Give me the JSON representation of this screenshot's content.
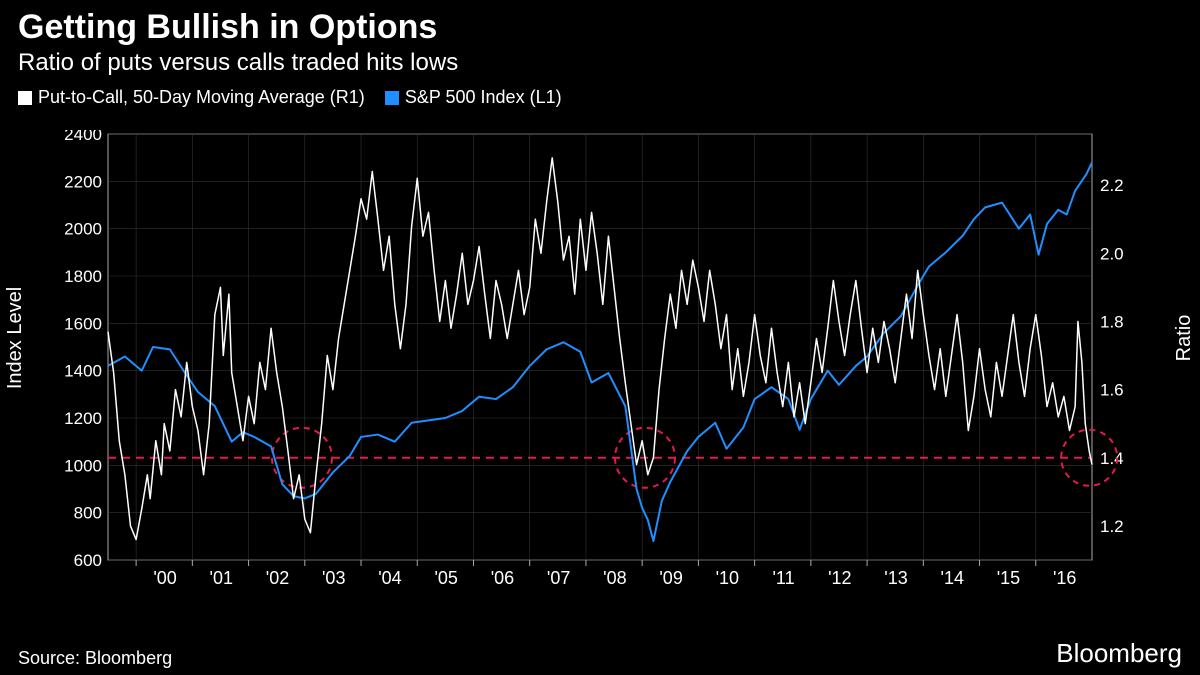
{
  "title": "Getting Bullish in Options",
  "subtitle": "Ratio of puts versus calls traded hits lows",
  "legend": [
    {
      "label": "Put-to-Call, 50-Day Moving Average (R1)",
      "color": "#ffffff"
    },
    {
      "label": "S&P 500 Index (L1)",
      "color": "#1f8fff"
    }
  ],
  "y_left": {
    "label": "Index Level",
    "min": 600,
    "max": 2400,
    "ticks": [
      600,
      800,
      1000,
      1200,
      1400,
      1600,
      1800,
      2000,
      2200,
      2400
    ]
  },
  "y_right": {
    "label": "Ratio",
    "min": 1.1,
    "max": 2.35,
    "ticks": [
      1.2,
      1.4,
      1.6,
      1.8,
      2.0,
      2.2
    ]
  },
  "x_axis": {
    "min": 1999.5,
    "max": 2017.0,
    "ticks": [
      "'00",
      "'01",
      "'02",
      "'03",
      "'04",
      "'05",
      "'06",
      "'07",
      "'08",
      "'09",
      "'10",
      "'11",
      "'12",
      "'13",
      "'14",
      "'15",
      "'16"
    ],
    "tick_positions": [
      2000,
      2001,
      2002,
      2003,
      2004,
      2005,
      2006,
      2007,
      2008,
      2009,
      2010,
      2011,
      2012,
      2013,
      2014,
      2015,
      2016
    ]
  },
  "series_sp500": {
    "color": "#1f8fff",
    "line_width": 2,
    "points": [
      [
        1999.5,
        1420
      ],
      [
        1999.8,
        1460
      ],
      [
        2000.1,
        1400
      ],
      [
        2000.3,
        1500
      ],
      [
        2000.6,
        1490
      ],
      [
        2000.9,
        1380
      ],
      [
        2001.1,
        1310
      ],
      [
        2001.4,
        1250
      ],
      [
        2001.7,
        1100
      ],
      [
        2001.9,
        1140
      ],
      [
        2002.1,
        1120
      ],
      [
        2002.4,
        1080
      ],
      [
        2002.6,
        920
      ],
      [
        2002.8,
        870
      ],
      [
        2003.0,
        860
      ],
      [
        2003.2,
        880
      ],
      [
        2003.5,
        970
      ],
      [
        2003.8,
        1040
      ],
      [
        2004.0,
        1120
      ],
      [
        2004.3,
        1130
      ],
      [
        2004.6,
        1100
      ],
      [
        2004.9,
        1180
      ],
      [
        2005.2,
        1190
      ],
      [
        2005.5,
        1200
      ],
      [
        2005.8,
        1230
      ],
      [
        2006.1,
        1290
      ],
      [
        2006.4,
        1280
      ],
      [
        2006.7,
        1330
      ],
      [
        2007.0,
        1420
      ],
      [
        2007.3,
        1490
      ],
      [
        2007.6,
        1520
      ],
      [
        2007.9,
        1480
      ],
      [
        2008.1,
        1350
      ],
      [
        2008.4,
        1390
      ],
      [
        2008.7,
        1250
      ],
      [
        2008.9,
        900
      ],
      [
        2009.0,
        820
      ],
      [
        2009.1,
        770
      ],
      [
        2009.2,
        680
      ],
      [
        2009.35,
        850
      ],
      [
        2009.5,
        930
      ],
      [
        2009.8,
        1060
      ],
      [
        2010.0,
        1120
      ],
      [
        2010.3,
        1180
      ],
      [
        2010.5,
        1070
      ],
      [
        2010.8,
        1160
      ],
      [
        2011.0,
        1280
      ],
      [
        2011.3,
        1330
      ],
      [
        2011.6,
        1280
      ],
      [
        2011.8,
        1150
      ],
      [
        2012.0,
        1280
      ],
      [
        2012.3,
        1400
      ],
      [
        2012.5,
        1340
      ],
      [
        2012.8,
        1420
      ],
      [
        2013.0,
        1460
      ],
      [
        2013.3,
        1560
      ],
      [
        2013.6,
        1630
      ],
      [
        2013.9,
        1760
      ],
      [
        2014.1,
        1840
      ],
      [
        2014.4,
        1900
      ],
      [
        2014.7,
        1970
      ],
      [
        2014.9,
        2040
      ],
      [
        2015.1,
        2090
      ],
      [
        2015.4,
        2110
      ],
      [
        2015.7,
        2000
      ],
      [
        2015.9,
        2060
      ],
      [
        2016.05,
        1890
      ],
      [
        2016.2,
        2020
      ],
      [
        2016.4,
        2080
      ],
      [
        2016.55,
        2060
      ],
      [
        2016.7,
        2160
      ],
      [
        2016.9,
        2230
      ],
      [
        2017.0,
        2280
      ]
    ]
  },
  "series_putcall": {
    "color": "#ffffff",
    "line_width": 1.5,
    "points": [
      [
        1999.5,
        1.77
      ],
      [
        1999.6,
        1.65
      ],
      [
        1999.7,
        1.45
      ],
      [
        1999.8,
        1.35
      ],
      [
        1999.9,
        1.2
      ],
      [
        2000.0,
        1.16
      ],
      [
        2000.1,
        1.25
      ],
      [
        2000.2,
        1.35
      ],
      [
        2000.25,
        1.28
      ],
      [
        2000.35,
        1.45
      ],
      [
        2000.45,
        1.35
      ],
      [
        2000.5,
        1.5
      ],
      [
        2000.6,
        1.42
      ],
      [
        2000.7,
        1.6
      ],
      [
        2000.8,
        1.52
      ],
      [
        2000.9,
        1.68
      ],
      [
        2001.0,
        1.55
      ],
      [
        2001.1,
        1.48
      ],
      [
        2001.2,
        1.35
      ],
      [
        2001.3,
        1.5
      ],
      [
        2001.4,
        1.82
      ],
      [
        2001.5,
        1.9
      ],
      [
        2001.55,
        1.7
      ],
      [
        2001.65,
        1.88
      ],
      [
        2001.7,
        1.65
      ],
      [
        2001.8,
        1.55
      ],
      [
        2001.9,
        1.45
      ],
      [
        2002.0,
        1.58
      ],
      [
        2002.1,
        1.5
      ],
      [
        2002.2,
        1.68
      ],
      [
        2002.3,
        1.6
      ],
      [
        2002.4,
        1.78
      ],
      [
        2002.5,
        1.65
      ],
      [
        2002.6,
        1.55
      ],
      [
        2002.7,
        1.42
      ],
      [
        2002.8,
        1.28
      ],
      [
        2002.9,
        1.35
      ],
      [
        2003.0,
        1.22
      ],
      [
        2003.1,
        1.18
      ],
      [
        2003.2,
        1.35
      ],
      [
        2003.3,
        1.5
      ],
      [
        2003.4,
        1.7
      ],
      [
        2003.5,
        1.6
      ],
      [
        2003.6,
        1.75
      ],
      [
        2003.7,
        1.85
      ],
      [
        2003.8,
        1.95
      ],
      [
        2003.9,
        2.05
      ],
      [
        2004.0,
        2.16
      ],
      [
        2004.1,
        2.1
      ],
      [
        2004.2,
        2.24
      ],
      [
        2004.3,
        2.1
      ],
      [
        2004.4,
        1.95
      ],
      [
        2004.5,
        2.05
      ],
      [
        2004.6,
        1.85
      ],
      [
        2004.7,
        1.72
      ],
      [
        2004.8,
        1.85
      ],
      [
        2004.9,
        2.08
      ],
      [
        2005.0,
        2.22
      ],
      [
        2005.1,
        2.05
      ],
      [
        2005.2,
        2.12
      ],
      [
        2005.3,
        1.95
      ],
      [
        2005.4,
        1.8
      ],
      [
        2005.5,
        1.92
      ],
      [
        2005.6,
        1.78
      ],
      [
        2005.7,
        1.88
      ],
      [
        2005.8,
        2.0
      ],
      [
        2005.9,
        1.85
      ],
      [
        2006.0,
        1.92
      ],
      [
        2006.1,
        2.02
      ],
      [
        2006.2,
        1.88
      ],
      [
        2006.3,
        1.75
      ],
      [
        2006.4,
        1.92
      ],
      [
        2006.5,
        1.85
      ],
      [
        2006.6,
        1.75
      ],
      [
        2006.7,
        1.85
      ],
      [
        2006.8,
        1.95
      ],
      [
        2006.9,
        1.82
      ],
      [
        2007.0,
        1.9
      ],
      [
        2007.1,
        2.1
      ],
      [
        2007.2,
        2.0
      ],
      [
        2007.3,
        2.15
      ],
      [
        2007.4,
        2.28
      ],
      [
        2007.5,
        2.15
      ],
      [
        2007.6,
        1.98
      ],
      [
        2007.7,
        2.05
      ],
      [
        2007.8,
        1.88
      ],
      [
        2007.9,
        2.1
      ],
      [
        2008.0,
        1.95
      ],
      [
        2008.1,
        2.12
      ],
      [
        2008.2,
        2.0
      ],
      [
        2008.3,
        1.85
      ],
      [
        2008.4,
        2.05
      ],
      [
        2008.5,
        1.9
      ],
      [
        2008.6,
        1.75
      ],
      [
        2008.7,
        1.62
      ],
      [
        2008.8,
        1.5
      ],
      [
        2008.9,
        1.38
      ],
      [
        2009.0,
        1.45
      ],
      [
        2009.1,
        1.35
      ],
      [
        2009.2,
        1.4
      ],
      [
        2009.3,
        1.6
      ],
      [
        2009.4,
        1.75
      ],
      [
        2009.5,
        1.88
      ],
      [
        2009.6,
        1.78
      ],
      [
        2009.7,
        1.95
      ],
      [
        2009.8,
        1.85
      ],
      [
        2009.9,
        1.98
      ],
      [
        2010.0,
        1.9
      ],
      [
        2010.1,
        1.8
      ],
      [
        2010.2,
        1.95
      ],
      [
        2010.3,
        1.85
      ],
      [
        2010.4,
        1.72
      ],
      [
        2010.5,
        1.82
      ],
      [
        2010.6,
        1.6
      ],
      [
        2010.7,
        1.72
      ],
      [
        2010.8,
        1.58
      ],
      [
        2010.9,
        1.68
      ],
      [
        2011.0,
        1.82
      ],
      [
        2011.1,
        1.7
      ],
      [
        2011.2,
        1.62
      ],
      [
        2011.3,
        1.78
      ],
      [
        2011.4,
        1.65
      ],
      [
        2011.5,
        1.55
      ],
      [
        2011.6,
        1.68
      ],
      [
        2011.7,
        1.52
      ],
      [
        2011.8,
        1.62
      ],
      [
        2011.9,
        1.5
      ],
      [
        2012.0,
        1.62
      ],
      [
        2012.1,
        1.75
      ],
      [
        2012.2,
        1.65
      ],
      [
        2012.3,
        1.78
      ],
      [
        2012.4,
        1.92
      ],
      [
        2012.5,
        1.8
      ],
      [
        2012.6,
        1.7
      ],
      [
        2012.7,
        1.82
      ],
      [
        2012.8,
        1.92
      ],
      [
        2012.9,
        1.78
      ],
      [
        2013.0,
        1.65
      ],
      [
        2013.1,
        1.78
      ],
      [
        2013.2,
        1.68
      ],
      [
        2013.3,
        1.8
      ],
      [
        2013.4,
        1.72
      ],
      [
        2013.5,
        1.62
      ],
      [
        2013.6,
        1.75
      ],
      [
        2013.7,
        1.88
      ],
      [
        2013.8,
        1.75
      ],
      [
        2013.9,
        1.95
      ],
      [
        2014.0,
        1.82
      ],
      [
        2014.1,
        1.7
      ],
      [
        2014.2,
        1.6
      ],
      [
        2014.3,
        1.72
      ],
      [
        2014.4,
        1.58
      ],
      [
        2014.5,
        1.7
      ],
      [
        2014.6,
        1.82
      ],
      [
        2014.7,
        1.68
      ],
      [
        2014.8,
        1.48
      ],
      [
        2014.9,
        1.58
      ],
      [
        2015.0,
        1.72
      ],
      [
        2015.1,
        1.6
      ],
      [
        2015.2,
        1.52
      ],
      [
        2015.3,
        1.68
      ],
      [
        2015.4,
        1.58
      ],
      [
        2015.5,
        1.7
      ],
      [
        2015.6,
        1.82
      ],
      [
        2015.7,
        1.68
      ],
      [
        2015.8,
        1.58
      ],
      [
        2015.9,
        1.72
      ],
      [
        2016.0,
        1.82
      ],
      [
        2016.1,
        1.7
      ],
      [
        2016.2,
        1.55
      ],
      [
        2016.3,
        1.62
      ],
      [
        2016.4,
        1.52
      ],
      [
        2016.5,
        1.58
      ],
      [
        2016.6,
        1.48
      ],
      [
        2016.7,
        1.55
      ],
      [
        2016.75,
        1.8
      ],
      [
        2016.82,
        1.68
      ],
      [
        2016.88,
        1.5
      ],
      [
        2016.95,
        1.42
      ],
      [
        2017.0,
        1.38
      ]
    ]
  },
  "ref_line": {
    "y_right": 1.4,
    "color": "#e6194b",
    "dash": "8,6",
    "width": 2
  },
  "circles": [
    {
      "x": 2002.95,
      "y_right": 1.4,
      "r": 30
    },
    {
      "x": 2009.05,
      "y_right": 1.4,
      "r": 30
    },
    {
      "x": 2016.95,
      "y_right": 1.4,
      "r": 28
    }
  ],
  "colors": {
    "background": "#000000",
    "grid": "#333333",
    "text": "#ffffff",
    "border": "#aaaaaa"
  },
  "source": "Source: Bloomberg",
  "brand": "Bloomberg"
}
